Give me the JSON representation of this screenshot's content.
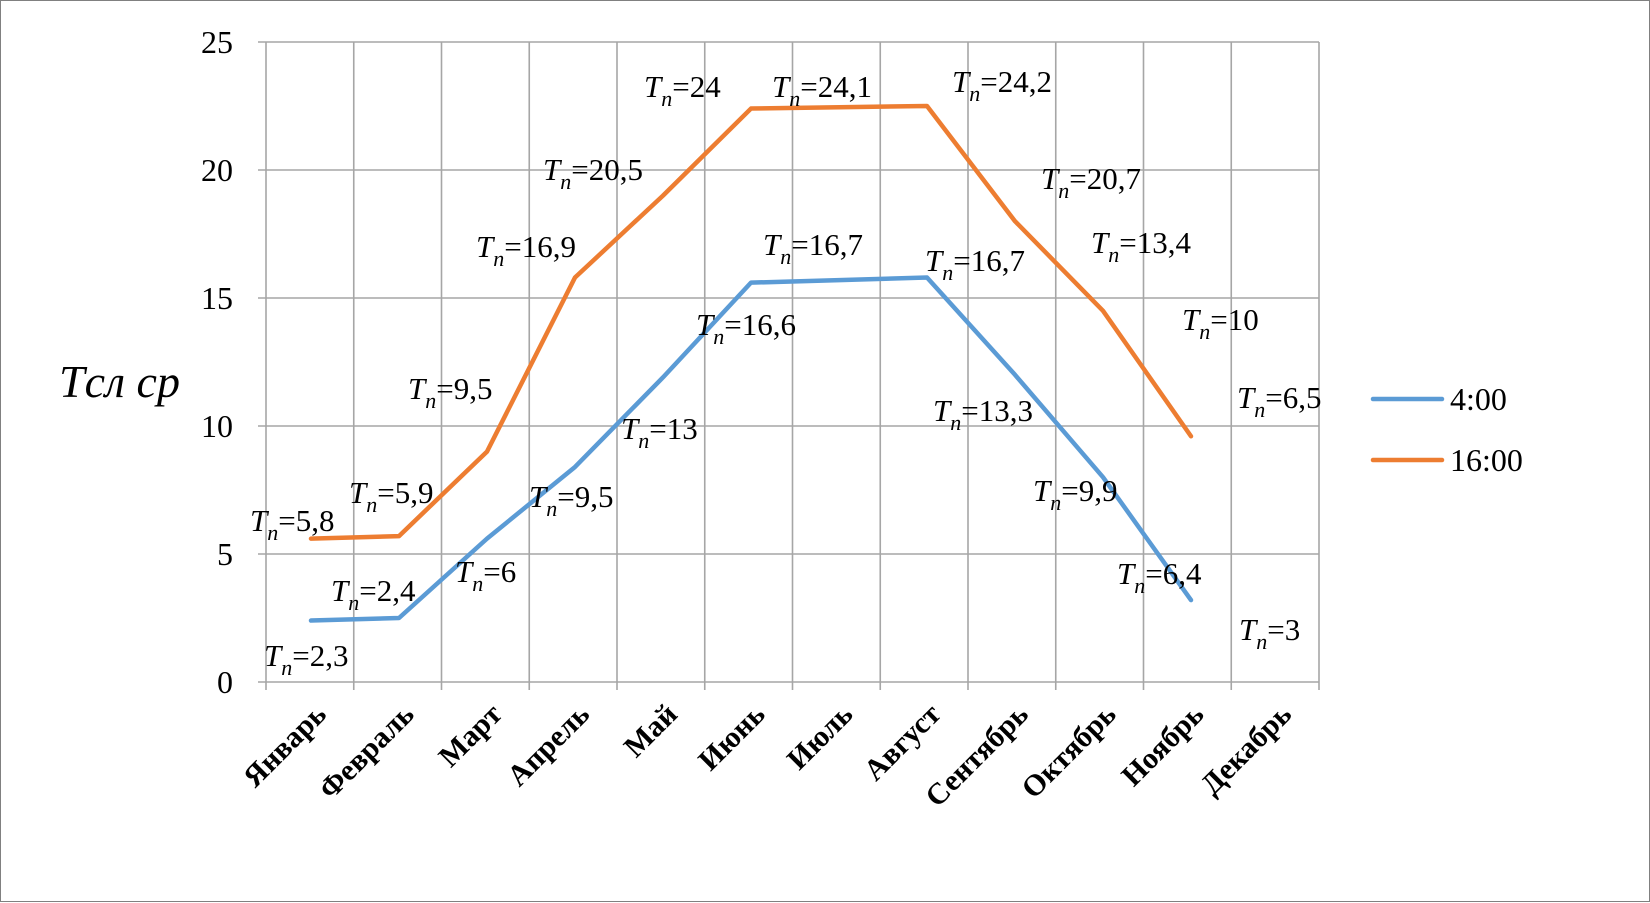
{
  "chart_data": {
    "type": "line",
    "ylabel": "Tсл ср",
    "xlabel": "",
    "ylim": [
      0,
      25
    ],
    "yticks": [
      "0",
      "5",
      "10",
      "15",
      "20",
      "25"
    ],
    "grid": true,
    "legend_position": "right",
    "categories": [
      "Январь",
      "Февраль",
      "Март",
      "Апрель",
      "Май",
      "Июнь",
      "Июль",
      "Август",
      "Сентябрь",
      "Октябрь",
      "Ноябрь",
      "Декабрь"
    ],
    "series": [
      {
        "name": "4:00",
        "color": "#5B9BD5",
        "values": [
          2.4,
          2.5,
          5.6,
          8.4,
          11.9,
          15.6,
          15.7,
          15.8,
          12.0,
          8.0,
          3.2,
          null
        ]
      },
      {
        "name": "16:00",
        "color": "#ED7D31",
        "values": [
          5.6,
          5.7,
          9.0,
          15.8,
          19.0,
          22.4,
          22.45,
          22.5,
          18.0,
          14.5,
          9.6,
          null
        ]
      }
    ],
    "annotations": [
      {
        "prefix": "T",
        "sub": "n",
        "text": "=2,3"
      },
      {
        "prefix": "T",
        "sub": "n",
        "text": "=2,4"
      },
      {
        "prefix": "T",
        "sub": "n",
        "text": "=6"
      },
      {
        "prefix": "T",
        "sub": "n",
        "text": "=9,5"
      },
      {
        "prefix": "T",
        "sub": "n",
        "text": "=13"
      },
      {
        "prefix": "T",
        "sub": "n",
        "text": "=16,6"
      },
      {
        "prefix": "T",
        "sub": "n",
        "text": "=16,7"
      },
      {
        "prefix": "T",
        "sub": "n",
        "text": "=16,7"
      },
      {
        "prefix": "T",
        "sub": "n",
        "text": "=13,3"
      },
      {
        "prefix": "T",
        "sub": "n",
        "text": "=9,9"
      },
      {
        "prefix": "T",
        "sub": "n",
        "text": "=6,4"
      },
      {
        "prefix": "T",
        "sub": "n",
        "text": "=3"
      },
      {
        "prefix": "T",
        "sub": "n",
        "text": "=5,8"
      },
      {
        "prefix": "T",
        "sub": "n",
        "text": "=5,9"
      },
      {
        "prefix": "T",
        "sub": "n",
        "text": "=9,5"
      },
      {
        "prefix": "T",
        "sub": "n",
        "text": "=16,9"
      },
      {
        "prefix": "T",
        "sub": "n",
        "text": "=20,5"
      },
      {
        "prefix": "T",
        "sub": "n",
        "text": "=24"
      },
      {
        "prefix": "T",
        "sub": "n",
        "text": "=24,1"
      },
      {
        "prefix": "T",
        "sub": "n",
        "text": "=24,2"
      },
      {
        "prefix": "T",
        "sub": "n",
        "text": "=20,7"
      },
      {
        "prefix": "T",
        "sub": "n",
        "text": "=13,4"
      },
      {
        "prefix": "T",
        "sub": "n",
        "text": "=10"
      },
      {
        "prefix": "T",
        "sub": "n",
        "text": "=6,5"
      }
    ]
  }
}
